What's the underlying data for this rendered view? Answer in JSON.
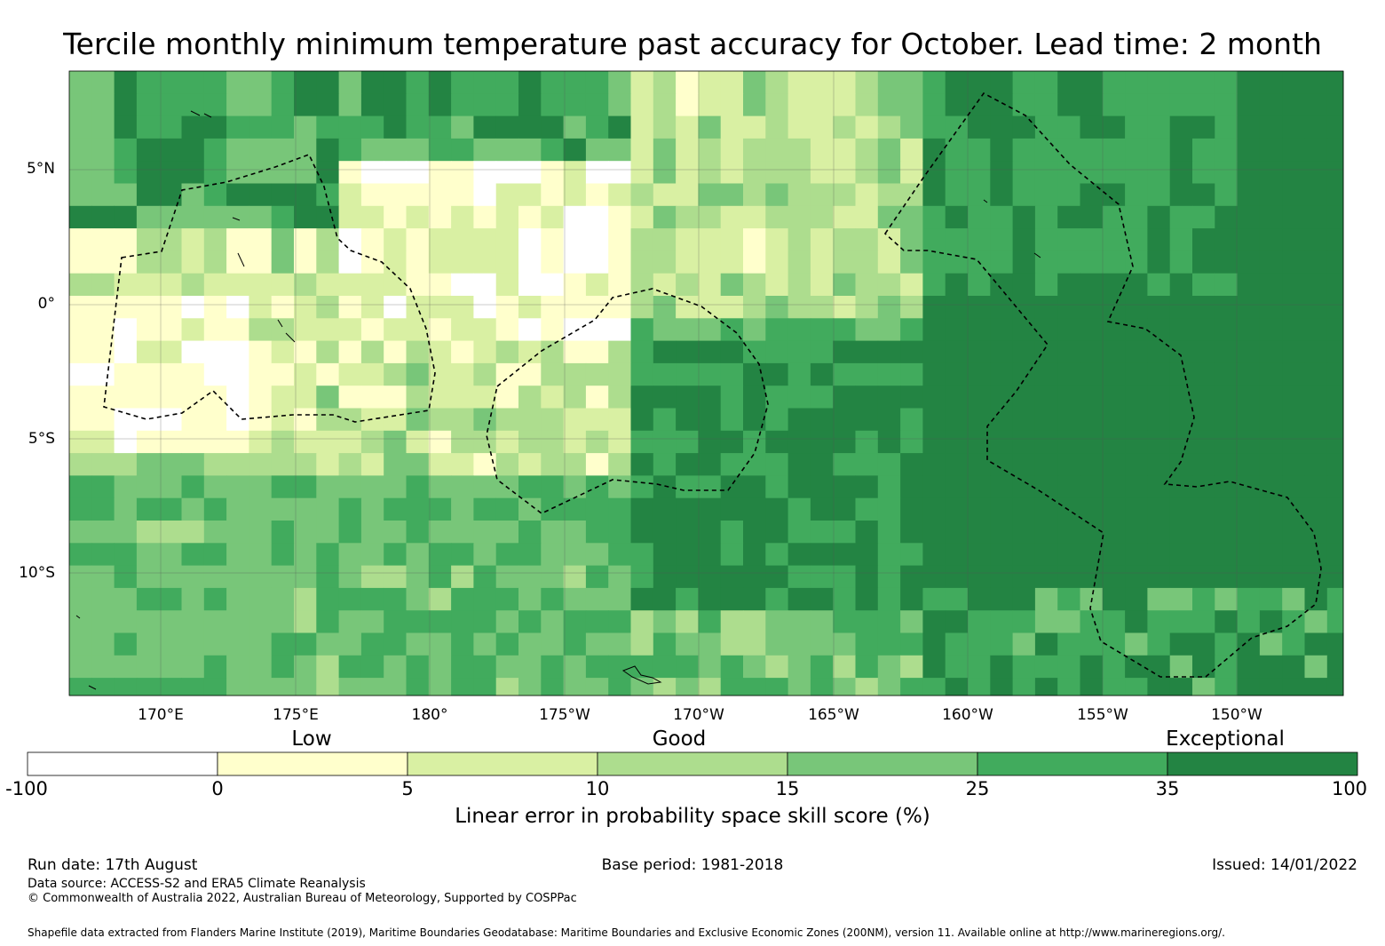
{
  "title": "Tercile monthly minimum temperature past accuracy for October. Lead time: 2 month",
  "map": {
    "lat_labels": [
      "5°N",
      "0°",
      "5°S",
      "10°S"
    ],
    "lon_labels": [
      "170°E",
      "175°E",
      "180°",
      "175°W",
      "170°W",
      "165°W",
      "160°W",
      "155°W",
      "150°W"
    ],
    "extent": {
      "lon_min": 166.6,
      "lon_max": 213.9,
      "lat_min": -14.5,
      "lat_max": 8.7
    }
  },
  "legend": {
    "categories": [
      "Low",
      "Good",
      "Exceptional"
    ],
    "ticks": [
      "-100",
      "0",
      "5",
      "10",
      "15",
      "25",
      "35",
      "100"
    ],
    "colors": [
      "#ffffff",
      "#ffffcc",
      "#d9f0a3",
      "#addd8e",
      "#78c679",
      "#41ab5d",
      "#238443"
    ],
    "label": "Linear error in probability space skill score (%)"
  },
  "footer": {
    "run_date": "Run date: 17th August",
    "base_period": "Base period: 1981-2018",
    "issued": "Issued: 14/01/2022",
    "data_source": "Data source: ACCESS-S2 and ERA5 Climate Reanalysis",
    "copyright": "© Commonwealth of Australia 2022, Australian Bureau of Meteorology, Supported by COSPPac",
    "shapefile": "Shapefile data extracted from Flanders Marine Institute (2019), Maritime Boundaries Geodatabase: Maritime Boundaries and Exclusive Economic Zones (200NM), version 11. Available online at http://www.marineregions.org/."
  }
}
